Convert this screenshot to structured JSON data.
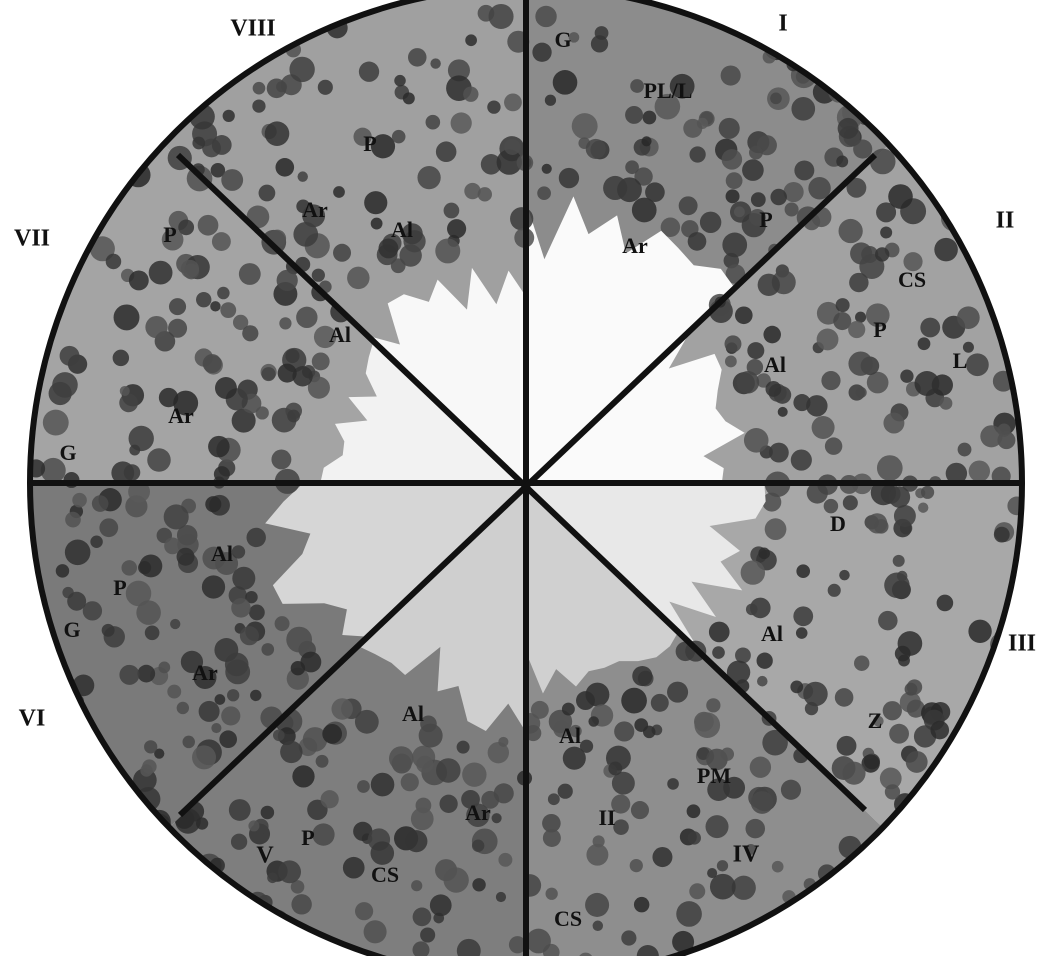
{
  "stages": [
    {
      "numeral": "I",
      "labels": [
        "G",
        "PL/L",
        "P",
        "Ar"
      ]
    },
    {
      "numeral": "II",
      "labels": [
        "CS",
        "P",
        "L",
        "Al"
      ]
    },
    {
      "numeral": "III",
      "labels": [
        "D",
        "Al",
        "Z"
      ]
    },
    {
      "numeral": "IV",
      "labels": [
        "Al",
        "PM",
        "II",
        "CS"
      ]
    },
    {
      "numeral": "V",
      "labels": [
        "Al",
        "Ar",
        "P",
        "CS"
      ]
    },
    {
      "numeral": "VI",
      "labels": [
        "Al",
        "P",
        "G",
        "Ar"
      ]
    },
    {
      "numeral": "VII",
      "labels": [
        "P",
        "Al",
        "Ar",
        "G"
      ]
    },
    {
      "numeral": "VIII",
      "labels": [
        "P",
        "Ar",
        "Al"
      ]
    }
  ]
}
